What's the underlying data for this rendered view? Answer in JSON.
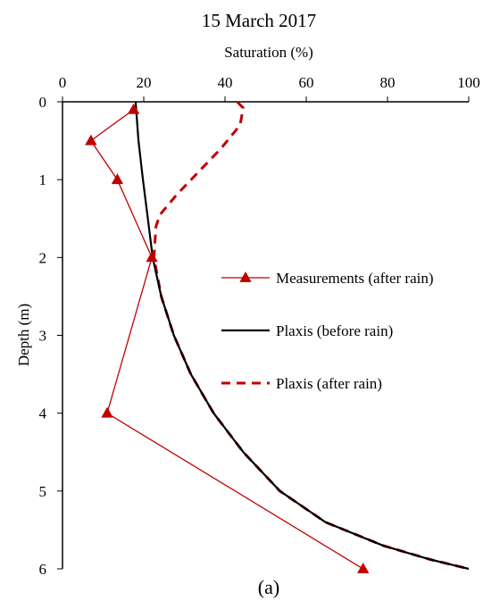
{
  "chart_data": {
    "type": "line",
    "title": "15 March 2017",
    "caption": "(a)",
    "xlabel": "Saturation (%)",
    "ylabel": "Depth (m)",
    "xlim": [
      0,
      100
    ],
    "ylim": [
      0,
      6
    ],
    "y_inverted": true,
    "x_axis_position": "top",
    "grid": false,
    "legend_position": "right",
    "x_ticks": [
      "0",
      "20",
      "40",
      "60",
      "80",
      "100"
    ],
    "y_ticks": [
      "0",
      "1",
      "2",
      "3",
      "4",
      "5",
      "6"
    ],
    "series": [
      {
        "name": "Measurements (after rain)",
        "style": "line-triangle-markers",
        "color": "#c00000",
        "points": [
          [
            17.5,
            0.1
          ],
          [
            7,
            0.5
          ],
          [
            13.5,
            1.0
          ],
          [
            22,
            2.0
          ],
          [
            11,
            4.0
          ],
          [
            74,
            6.0
          ]
        ]
      },
      {
        "name": "Plaxis (before rain)",
        "style": "solid",
        "color": "#000000",
        "points": [
          [
            18,
            0
          ],
          [
            18.7,
            0.5
          ],
          [
            19.8,
            1.0
          ],
          [
            21,
            1.5
          ],
          [
            22.2,
            2.0
          ],
          [
            24.3,
            2.5
          ],
          [
            27.4,
            3.0
          ],
          [
            31.6,
            3.5
          ],
          [
            37.2,
            4.0
          ],
          [
            44.5,
            4.5
          ],
          [
            53.5,
            5.0
          ],
          [
            64.7,
            5.4
          ],
          [
            78.9,
            5.7
          ],
          [
            90.5,
            5.88
          ],
          [
            100,
            6.0
          ]
        ]
      },
      {
        "name": "Plaxis (after rain)",
        "style": "dashed",
        "color": "#c00000",
        "points": [
          [
            43,
            0
          ],
          [
            44.5,
            0.08
          ],
          [
            43.7,
            0.3
          ],
          [
            39,
            0.6
          ],
          [
            33.5,
            0.9
          ],
          [
            28,
            1.2
          ],
          [
            24,
            1.45
          ],
          [
            23,
            1.6
          ],
          [
            22.5,
            2.0
          ],
          [
            24.3,
            2.5
          ],
          [
            27.4,
            3.0
          ],
          [
            31.6,
            3.5
          ],
          [
            37.2,
            4.0
          ],
          [
            44.5,
            4.5
          ],
          [
            53.5,
            5.0
          ],
          [
            64.7,
            5.4
          ],
          [
            78.9,
            5.7
          ],
          [
            90.5,
            5.88
          ],
          [
            100,
            6.0
          ]
        ]
      }
    ]
  }
}
